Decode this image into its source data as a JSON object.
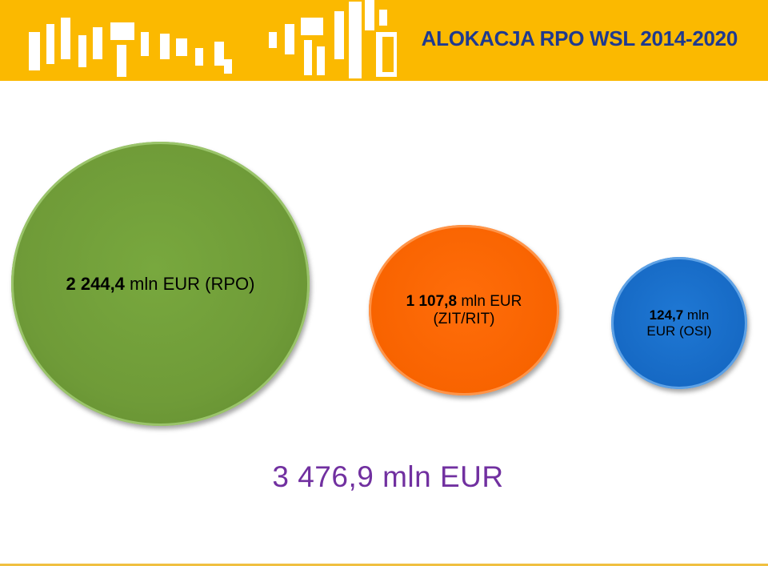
{
  "header": {
    "title": "ALOKACJA RPO WSL 2014-2020",
    "background_color": "#fbb900",
    "title_color": "#1f3a8f",
    "logo_icon": "eu-funds-building-blocks-logo"
  },
  "chart_data": {
    "type": "bubble",
    "title": "ALOKACJA RPO WSL 2014-2020",
    "unit": "mln EUR",
    "items": [
      {
        "value": 2244.4,
        "value_text": "2 244,4",
        "label": " mln EUR (RPO)",
        "color": "#6f9b38"
      },
      {
        "value": 1107.8,
        "value_text": "1 107,8",
        "label": " mln EUR",
        "label2": "(ZIT/RIT)",
        "color": "#f86300"
      },
      {
        "value": 124.7,
        "value_text": "124,7",
        "label": " mln",
        "label2": "EUR (OSI)",
        "color": "#1669c4"
      }
    ],
    "total": {
      "value": 3476.9,
      "text": "3 476,9 mln EUR",
      "color": "#7130a0"
    }
  }
}
